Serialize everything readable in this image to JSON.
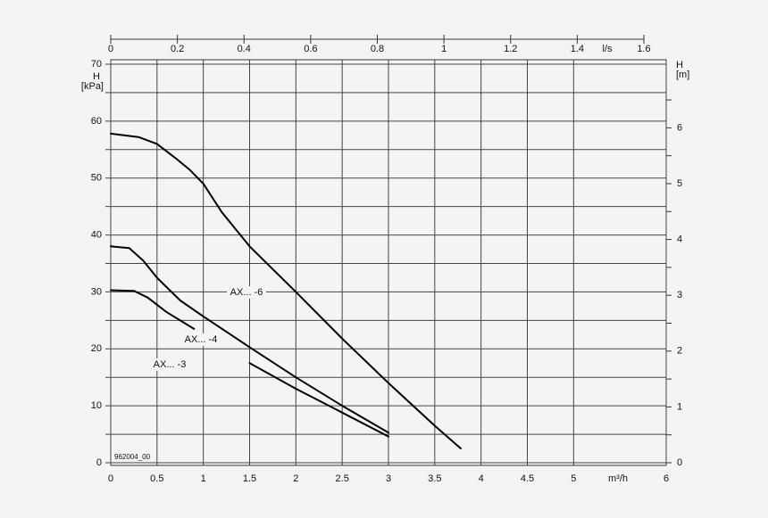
{
  "chart_data": {
    "type": "line",
    "x_label": "m³/h",
    "x2_label": "l/s",
    "y_label": "H",
    "y_unit": "[kPa]",
    "y2_label": "H",
    "y2_unit": "[m]",
    "note": "962004_00",
    "xlim": [
      0,
      6
    ],
    "xticks": [
      0,
      0.5,
      1,
      1.5,
      2,
      2.5,
      3,
      3.5,
      4,
      4.5,
      5,
      6
    ],
    "x2lim": [
      0,
      1.667
    ],
    "x2ticks": [
      0,
      0.2,
      0.4,
      0.6,
      0.8,
      1.0,
      1.2,
      1.4,
      1.6
    ],
    "ylim": [
      0,
      70
    ],
    "yticks": [
      0,
      10,
      20,
      30,
      40,
      50,
      60,
      70
    ],
    "yminor_ticks": [
      5,
      15,
      25,
      35,
      45,
      55,
      65
    ],
    "y2lim": [
      0,
      7.14
    ],
    "y2ticks": [
      0,
      1,
      2,
      3,
      4,
      5,
      6
    ],
    "y2minor_ticks": [
      0.5,
      1.5,
      2.5,
      3.5,
      4.5,
      5.5,
      6.5
    ],
    "grid": true,
    "series": [
      {
        "name": "AX... -6",
        "color": "#000000",
        "x": [
          0,
          0.3,
          0.5,
          0.7,
          0.85,
          1.0,
          1.2,
          1.5,
          2.0,
          2.5,
          3.0,
          3.5,
          3.78
        ],
        "values": [
          57.8,
          57.2,
          56,
          53.5,
          51.5,
          49,
          44,
          38,
          30,
          21.8,
          14,
          6.5,
          2.5
        ]
      },
      {
        "name": "AX... -4",
        "color": "#000000",
        "x": [
          0,
          0.2,
          0.35,
          0.5,
          0.75,
          1.0,
          1.5,
          2.0,
          2.5,
          3.0
        ],
        "values": [
          38,
          37.7,
          35.5,
          32.5,
          28.5,
          25.7,
          20.3,
          15,
          10,
          5.3
        ]
      },
      {
        "name": "AX... -3",
        "color": "#000000",
        "x": [
          0,
          0.25,
          0.4,
          0.6,
          0.9,
          1.15,
          1.5,
          2.0,
          2.5,
          3.0
        ],
        "values": [
          30.3,
          30.2,
          29,
          26.5,
          23.5,
          null,
          17.5,
          13,
          8.8,
          4.6
        ]
      }
    ]
  }
}
